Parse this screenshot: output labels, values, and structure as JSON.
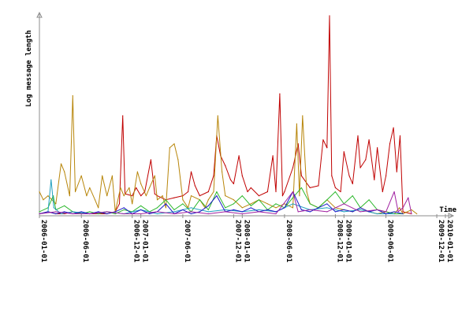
{
  "chart_data": {
    "type": "line",
    "title": "",
    "xlabel": "Time",
    "ylabel": "Log message length",
    "grid": false,
    "legend": "none",
    "x_scale": "time",
    "xlim": [
      "2006-01-01",
      "2010-01-01"
    ],
    "ylim": [
      0,
      100
    ],
    "x_ticks": [
      "2006-01-01",
      "2006-06-01",
      "2006-12-01",
      "2007-01-01",
      "2007-06-01",
      "2007-12-01",
      "2008-01-01",
      "2008-06-01",
      "2008-12-01",
      "2009-01-01",
      "2009-06-01",
      "2009-12-01",
      "2010-01-01"
    ],
    "colors": {
      "axis": "#8c8c8c",
      "text": "#000000",
      "background": "#ffffff"
    },
    "series": [
      {
        "color": "#c00000",
        "points": [
          [
            "2006-01-01",
            1
          ],
          [
            "2006-02-01",
            2
          ],
          [
            "2006-03-01",
            1
          ],
          [
            "2006-04-01",
            1
          ],
          [
            "2006-05-01",
            2
          ],
          [
            "2006-06-01",
            1
          ],
          [
            "2006-07-01",
            1
          ],
          [
            "2006-08-01",
            1
          ],
          [
            "2006-09-01",
            1
          ],
          [
            "2006-10-01",
            2
          ],
          [
            "2006-10-16",
            6
          ],
          [
            "2006-10-28",
            50
          ],
          [
            "2006-11-05",
            11
          ],
          [
            "2006-12-01",
            10
          ],
          [
            "2006-12-15",
            14
          ],
          [
            "2007-01-01",
            10
          ],
          [
            "2007-01-15",
            12
          ],
          [
            "2007-02-06",
            28
          ],
          [
            "2007-02-20",
            11
          ],
          [
            "2007-03-01",
            10
          ],
          [
            "2007-04-01",
            8
          ],
          [
            "2007-05-01",
            9
          ],
          [
            "2007-06-01",
            10
          ],
          [
            "2007-06-20",
            12
          ],
          [
            "2007-07-01",
            22
          ],
          [
            "2007-07-15",
            15
          ],
          [
            "2007-08-01",
            10
          ],
          [
            "2007-09-01",
            12
          ],
          [
            "2007-09-20",
            20
          ],
          [
            "2007-10-01",
            40
          ],
          [
            "2007-10-15",
            30
          ],
          [
            "2007-11-01",
            25
          ],
          [
            "2007-11-20",
            18
          ],
          [
            "2007-12-01",
            16
          ],
          [
            "2007-12-20",
            30
          ],
          [
            "2008-01-01",
            20
          ],
          [
            "2008-01-20",
            12
          ],
          [
            "2008-02-01",
            14
          ],
          [
            "2008-03-01",
            10
          ],
          [
            "2008-04-01",
            12
          ],
          [
            "2008-04-20",
            30
          ],
          [
            "2008-05-01",
            12
          ],
          [
            "2008-05-15",
            61
          ],
          [
            "2008-05-25",
            10
          ],
          [
            "2008-06-01",
            12
          ],
          [
            "2008-07-01",
            24
          ],
          [
            "2008-07-20",
            36
          ],
          [
            "2008-08-01",
            20
          ],
          [
            "2008-09-01",
            14
          ],
          [
            "2008-10-01",
            15
          ],
          [
            "2008-10-18",
            38
          ],
          [
            "2008-11-01",
            34
          ],
          [
            "2008-11-10",
            100
          ],
          [
            "2008-11-18",
            20
          ],
          [
            "2008-12-01",
            14
          ],
          [
            "2008-12-20",
            12
          ],
          [
            "2009-01-01",
            32
          ],
          [
            "2009-01-20",
            20
          ],
          [
            "2009-02-01",
            16
          ],
          [
            "2009-02-20",
            40
          ],
          [
            "2009-03-01",
            24
          ],
          [
            "2009-03-20",
            28
          ],
          [
            "2009-04-01",
            38
          ],
          [
            "2009-04-20",
            18
          ],
          [
            "2009-05-01",
            34
          ],
          [
            "2009-05-20",
            12
          ],
          [
            "2009-06-01",
            20
          ],
          [
            "2009-06-15",
            36
          ],
          [
            "2009-06-28",
            44
          ],
          [
            "2009-07-10",
            22
          ],
          [
            "2009-07-22",
            40
          ],
          [
            "2009-08-01",
            2
          ],
          [
            "2009-09-01",
            1
          ]
        ]
      },
      {
        "color": "#b8860b",
        "points": [
          [
            "2006-01-01",
            12
          ],
          [
            "2006-01-15",
            8
          ],
          [
            "2006-02-01",
            10
          ],
          [
            "2006-03-01",
            6
          ],
          [
            "2006-03-20",
            26
          ],
          [
            "2006-04-01",
            22
          ],
          [
            "2006-04-20",
            10
          ],
          [
            "2006-05-01",
            60
          ],
          [
            "2006-05-10",
            12
          ],
          [
            "2006-06-01",
            20
          ],
          [
            "2006-06-20",
            10
          ],
          [
            "2006-07-01",
            14
          ],
          [
            "2006-07-20",
            8
          ],
          [
            "2006-08-01",
            4
          ],
          [
            "2006-08-15",
            20
          ],
          [
            "2006-09-01",
            10
          ],
          [
            "2006-09-20",
            20
          ],
          [
            "2006-10-01",
            2
          ],
          [
            "2006-10-20",
            14
          ],
          [
            "2006-11-01",
            10
          ],
          [
            "2006-11-20",
            14
          ],
          [
            "2006-12-01",
            6
          ],
          [
            "2006-12-20",
            22
          ],
          [
            "2007-01-01",
            16
          ],
          [
            "2007-01-20",
            10
          ],
          [
            "2007-02-01",
            14
          ],
          [
            "2007-02-20",
            20
          ],
          [
            "2007-03-01",
            8
          ],
          [
            "2007-03-20",
            10
          ],
          [
            "2007-04-01",
            4
          ],
          [
            "2007-04-15",
            34
          ],
          [
            "2007-05-01",
            36
          ],
          [
            "2007-05-15",
            28
          ],
          [
            "2007-06-01",
            8
          ],
          [
            "2007-06-20",
            4
          ],
          [
            "2007-07-01",
            10
          ],
          [
            "2007-08-01",
            8
          ],
          [
            "2007-08-20",
            4
          ],
          [
            "2007-09-01",
            8
          ],
          [
            "2007-09-20",
            12
          ],
          [
            "2007-10-05",
            50
          ],
          [
            "2007-10-20",
            22
          ],
          [
            "2007-11-01",
            10
          ],
          [
            "2007-12-01",
            8
          ],
          [
            "2008-01-01",
            4
          ],
          [
            "2008-02-01",
            6
          ],
          [
            "2008-03-01",
            8
          ],
          [
            "2008-04-01",
            6
          ],
          [
            "2008-05-01",
            4
          ],
          [
            "2008-06-01",
            6
          ],
          [
            "2008-07-01",
            4
          ],
          [
            "2008-07-15",
            46
          ],
          [
            "2008-07-25",
            10
          ],
          [
            "2008-08-05",
            50
          ],
          [
            "2008-08-20",
            12
          ],
          [
            "2008-09-01",
            6
          ],
          [
            "2008-10-01",
            4
          ],
          [
            "2008-11-01",
            8
          ],
          [
            "2008-12-01",
            4
          ],
          [
            "2009-01-01",
            3
          ],
          [
            "2009-02-01",
            2
          ],
          [
            "2009-03-01",
            4
          ],
          [
            "2009-04-01",
            2
          ],
          [
            "2009-05-01",
            1
          ],
          [
            "2009-06-01",
            2
          ],
          [
            "2009-07-01",
            1
          ],
          [
            "2009-07-20",
            4
          ],
          [
            "2009-08-01",
            1
          ],
          [
            "2009-09-01",
            3
          ],
          [
            "2009-09-20",
            1
          ]
        ]
      },
      {
        "color": "#2db82d",
        "points": [
          [
            "2006-01-01",
            2
          ],
          [
            "2006-02-01",
            4
          ],
          [
            "2006-02-20",
            10
          ],
          [
            "2006-03-01",
            3
          ],
          [
            "2006-04-01",
            5
          ],
          [
            "2006-05-01",
            2
          ],
          [
            "2006-06-01",
            1
          ],
          [
            "2006-07-01",
            2
          ],
          [
            "2006-08-01",
            1
          ],
          [
            "2006-09-01",
            2
          ],
          [
            "2006-10-01",
            1
          ],
          [
            "2006-11-01",
            3
          ],
          [
            "2006-12-01",
            2
          ],
          [
            "2007-01-01",
            5
          ],
          [
            "2007-02-01",
            2
          ],
          [
            "2007-03-01",
            4
          ],
          [
            "2007-04-01",
            8
          ],
          [
            "2007-05-01",
            3
          ],
          [
            "2007-06-01",
            6
          ],
          [
            "2007-07-01",
            2
          ],
          [
            "2007-08-01",
            8
          ],
          [
            "2007-09-01",
            3
          ],
          [
            "2007-10-01",
            12
          ],
          [
            "2007-11-01",
            4
          ],
          [
            "2007-12-01",
            6
          ],
          [
            "2008-01-01",
            10
          ],
          [
            "2008-02-01",
            5
          ],
          [
            "2008-03-01",
            8
          ],
          [
            "2008-04-01",
            3
          ],
          [
            "2008-05-01",
            6
          ],
          [
            "2008-06-01",
            4
          ],
          [
            "2008-07-01",
            9
          ],
          [
            "2008-08-01",
            14
          ],
          [
            "2008-09-01",
            6
          ],
          [
            "2008-10-01",
            4
          ],
          [
            "2008-11-01",
            8
          ],
          [
            "2008-12-01",
            12
          ],
          [
            "2009-01-01",
            6
          ],
          [
            "2009-02-01",
            10
          ],
          [
            "2009-03-01",
            4
          ],
          [
            "2009-04-01",
            8
          ],
          [
            "2009-05-01",
            3
          ],
          [
            "2009-06-01",
            2
          ],
          [
            "2009-07-01",
            1
          ],
          [
            "2009-08-01",
            1
          ]
        ]
      },
      {
        "color": "#1f9fbf",
        "points": [
          [
            "2006-01-01",
            1
          ],
          [
            "2006-02-01",
            2
          ],
          [
            "2006-02-12",
            18
          ],
          [
            "2006-02-22",
            4
          ],
          [
            "2006-03-20",
            1
          ],
          [
            "2006-05-01",
            2
          ],
          [
            "2006-07-01",
            1
          ],
          [
            "2006-09-01",
            2
          ],
          [
            "2006-11-01",
            1
          ],
          [
            "2007-01-01",
            3
          ],
          [
            "2007-03-01",
            1
          ],
          [
            "2007-05-01",
            2
          ],
          [
            "2007-07-01",
            4
          ],
          [
            "2007-09-01",
            2
          ],
          [
            "2007-11-01",
            3
          ],
          [
            "2008-01-01",
            2
          ],
          [
            "2008-03-01",
            3
          ],
          [
            "2008-05-01",
            2
          ],
          [
            "2008-07-01",
            6
          ],
          [
            "2008-09-01",
            3
          ],
          [
            "2008-11-01",
            4
          ],
          [
            "2009-01-01",
            2
          ],
          [
            "2009-03-01",
            3
          ],
          [
            "2009-05-01",
            1
          ],
          [
            "2009-07-01",
            1
          ]
        ]
      },
      {
        "color": "#1c1cc8",
        "points": [
          [
            "2006-01-01",
            1
          ],
          [
            "2006-02-01",
            2
          ],
          [
            "2006-03-01",
            1
          ],
          [
            "2006-04-01",
            2
          ],
          [
            "2006-05-01",
            1
          ],
          [
            "2006-06-01",
            2
          ],
          [
            "2006-07-01",
            1
          ],
          [
            "2006-08-01",
            2
          ],
          [
            "2006-09-01",
            1
          ],
          [
            "2006-10-01",
            2
          ],
          [
            "2006-11-01",
            4
          ],
          [
            "2006-12-01",
            1
          ],
          [
            "2007-01-01",
            3
          ],
          [
            "2007-02-01",
            1
          ],
          [
            "2007-03-01",
            2
          ],
          [
            "2007-04-01",
            6
          ],
          [
            "2007-05-01",
            1
          ],
          [
            "2007-06-01",
            3
          ],
          [
            "2007-07-01",
            1
          ],
          [
            "2007-08-01",
            2
          ],
          [
            "2007-09-01",
            5
          ],
          [
            "2007-10-01",
            10
          ],
          [
            "2007-11-01",
            2
          ],
          [
            "2007-12-01",
            3
          ],
          [
            "2008-01-01",
            2
          ],
          [
            "2008-02-01",
            4
          ],
          [
            "2008-03-01",
            2
          ],
          [
            "2008-04-01",
            3
          ],
          [
            "2008-05-01",
            2
          ],
          [
            "2008-06-01",
            4
          ],
          [
            "2008-07-01",
            12
          ],
          [
            "2008-08-01",
            3
          ],
          [
            "2008-09-01",
            2
          ],
          [
            "2008-10-01",
            4
          ],
          [
            "2008-11-01",
            6
          ],
          [
            "2008-12-01",
            2
          ],
          [
            "2009-01-01",
            3
          ],
          [
            "2009-02-01",
            2
          ],
          [
            "2009-03-01",
            4
          ],
          [
            "2009-04-01",
            2
          ],
          [
            "2009-05-01",
            3
          ],
          [
            "2009-06-01",
            1
          ],
          [
            "2009-07-01",
            2
          ],
          [
            "2009-08-01",
            1
          ]
        ]
      },
      {
        "color": "#a020a0",
        "points": [
          [
            "2006-01-01",
            1
          ],
          [
            "2006-03-01",
            2
          ],
          [
            "2006-05-01",
            1
          ],
          [
            "2006-07-01",
            1
          ],
          [
            "2006-09-01",
            2
          ],
          [
            "2006-11-01",
            1
          ],
          [
            "2007-01-01",
            1
          ],
          [
            "2007-03-01",
            2
          ],
          [
            "2007-05-01",
            1
          ],
          [
            "2007-07-01",
            2
          ],
          [
            "2007-09-01",
            1
          ],
          [
            "2007-11-01",
            2
          ],
          [
            "2008-01-01",
            1
          ],
          [
            "2008-03-01",
            2
          ],
          [
            "2008-05-01",
            1
          ],
          [
            "2008-07-01",
            12
          ],
          [
            "2008-07-20",
            2
          ],
          [
            "2008-09-01",
            3
          ],
          [
            "2008-11-01",
            2
          ],
          [
            "2009-01-01",
            6
          ],
          [
            "2009-03-01",
            2
          ],
          [
            "2009-05-01",
            3
          ],
          [
            "2009-06-01",
            2
          ],
          [
            "2009-07-01",
            12
          ],
          [
            "2009-07-15",
            2
          ],
          [
            "2009-08-01",
            4
          ],
          [
            "2009-08-20",
            9
          ],
          [
            "2009-09-01",
            1
          ]
        ]
      }
    ]
  }
}
